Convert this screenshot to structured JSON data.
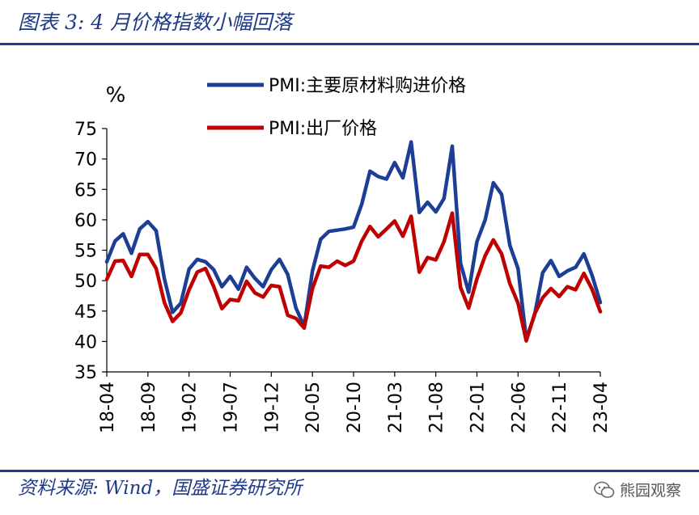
{
  "figure": {
    "title": "图表 3:  4 月价格指数小幅回落",
    "source": "资料来源:  Wind，国盛证券研究所",
    "watermark": "熊园观察",
    "watermark_icon": "wechat-bubble-icon"
  },
  "colors": {
    "accent": "#1f3a87",
    "series_blue": "#1c3f95",
    "series_red": "#c00000"
  },
  "chart_data": {
    "type": "line",
    "title": "",
    "xlabel": "",
    "ylabel": "%",
    "ylim": [
      35,
      75
    ],
    "yticks": [
      35,
      40,
      45,
      50,
      55,
      60,
      65,
      70,
      75
    ],
    "grid": false,
    "legend_position": "top-left",
    "x": [
      "18-04",
      "18-05",
      "18-06",
      "18-07",
      "18-08",
      "18-09",
      "18-10",
      "18-11",
      "18-12",
      "19-01",
      "19-02",
      "19-03",
      "19-04",
      "19-05",
      "19-06",
      "19-07",
      "19-08",
      "19-09",
      "19-10",
      "19-11",
      "19-12",
      "20-01",
      "20-02",
      "20-03",
      "20-04",
      "20-05",
      "20-06",
      "20-07",
      "20-08",
      "20-09",
      "20-10",
      "20-11",
      "20-12",
      "21-01",
      "21-02",
      "21-03",
      "21-04",
      "21-05",
      "21-06",
      "21-07",
      "21-08",
      "21-09",
      "21-10",
      "21-11",
      "21-12",
      "22-01",
      "22-02",
      "22-03",
      "22-04",
      "22-05",
      "22-06",
      "22-07",
      "22-08",
      "22-09",
      "22-10",
      "22-11",
      "22-12",
      "23-01",
      "23-02",
      "23-03",
      "23-04"
    ],
    "xtick_labels": [
      "18-04",
      "18-09",
      "19-02",
      "19-07",
      "19-12",
      "20-05",
      "20-10",
      "21-03",
      "21-08",
      "22-01",
      "22-06",
      "22-11",
      "23-04"
    ],
    "series": [
      {
        "name": "PMI:主要原材料购进价格",
        "color": "#1c3f95",
        "values": [
          53.1,
          56.5,
          57.7,
          54.5,
          58.5,
          59.7,
          58.2,
          50.3,
          44.8,
          46.3,
          51.9,
          53.5,
          53.1,
          51.8,
          49.0,
          50.7,
          48.6,
          52.2,
          50.4,
          49.0,
          51.8,
          53.5,
          51.0,
          45.5,
          42.5,
          51.6,
          56.8,
          58.1,
          58.3,
          58.5,
          58.8,
          62.6,
          68.0,
          67.1,
          66.7,
          69.4,
          66.9,
          72.8,
          61.2,
          62.9,
          61.3,
          63.5,
          72.1,
          52.9,
          48.1,
          56.4,
          60.0,
          66.1,
          64.2,
          55.8,
          52.0,
          40.4,
          44.3,
          51.3,
          53.3,
          50.7,
          51.6,
          52.2,
          54.4,
          50.9,
          46.4
        ]
      },
      {
        "name": "PMI:出厂价格",
        "color": "#c00000",
        "values": [
          50.2,
          53.2,
          53.3,
          50.7,
          54.3,
          54.3,
          52.0,
          46.4,
          43.3,
          44.7,
          48.5,
          51.4,
          52.0,
          49.0,
          45.4,
          46.9,
          46.7,
          49.9,
          48.0,
          47.3,
          49.2,
          49.0,
          44.3,
          43.8,
          42.2,
          48.7,
          52.4,
          52.2,
          53.2,
          52.5,
          53.2,
          56.5,
          58.9,
          57.2,
          58.5,
          59.8,
          57.3,
          60.6,
          51.4,
          53.8,
          53.4,
          56.4,
          61.1,
          48.9,
          45.5,
          50.3,
          54.1,
          56.7,
          54.4,
          49.5,
          46.3,
          40.1,
          44.5,
          47.2,
          48.7,
          47.4,
          49.0,
          48.5,
          51.2,
          48.6,
          44.9
        ]
      }
    ]
  }
}
